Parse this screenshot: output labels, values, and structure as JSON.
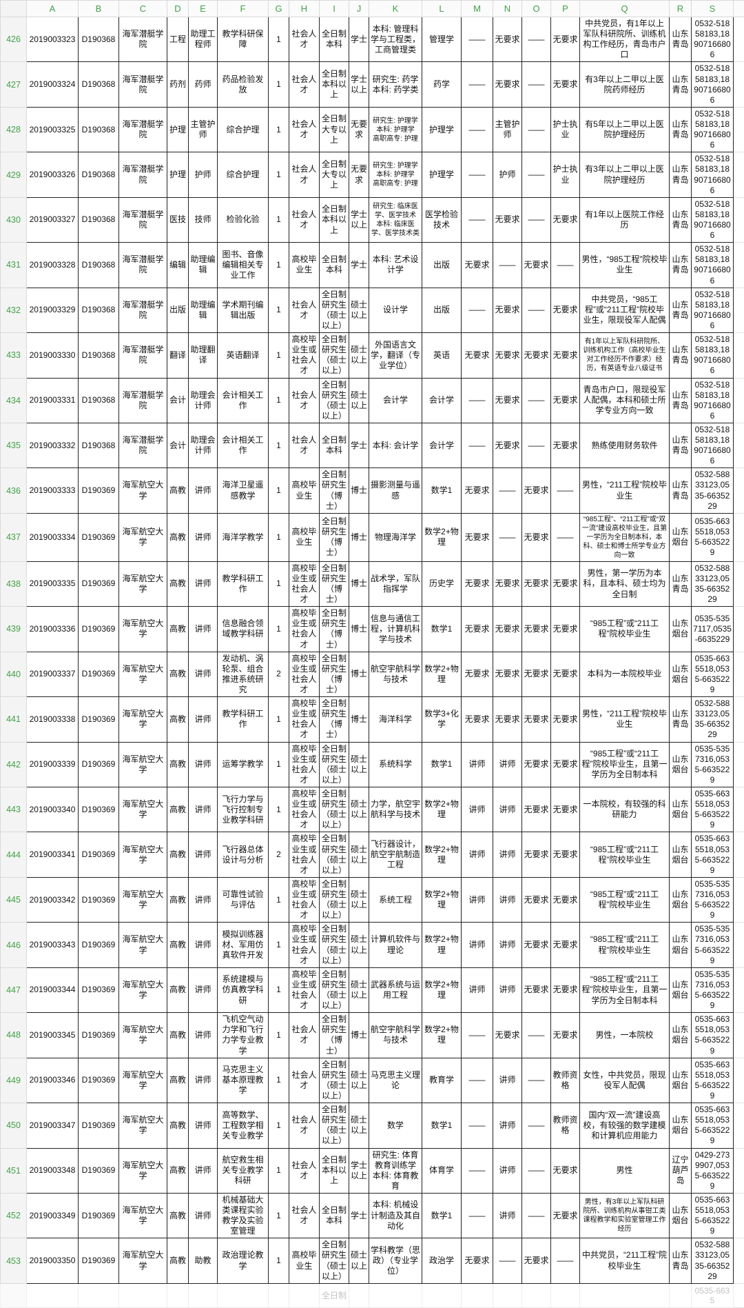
{
  "ui_colors": {
    "row_index_green": "#43a047",
    "grid_line": "#222222",
    "header_border": "#d9d9d9"
  },
  "ghost": {
    "cells": {
      "I": "全日制",
      "S": "0535-6635"
    }
  },
  "table": {
    "column_keys": [
      "A",
      "B",
      "C",
      "D",
      "E",
      "F",
      "G",
      "H",
      "I",
      "J",
      "K",
      "L",
      "M",
      "N",
      "O",
      "P",
      "Q",
      "R",
      "S"
    ],
    "rows": [
      {
        "num": "426",
        "cells": {
          "A": "2019003323",
          "B": "D190368",
          "C": "海军潜艇学院",
          "D": "工程",
          "E": "助理工程师",
          "F": "教学科研保障",
          "G": "1",
          "H": "社会人才",
          "I": "全日制本科",
          "J": "学士",
          "K": "本科: 管理科学与工程类，工商管理类",
          "L": "管理学",
          "M": "——",
          "N": "无要求",
          "O": "——",
          "P": "无要求",
          "Q": "中共党员，有1年以上军队科研院所、训练机构工作经历，青岛市户口",
          "R": "山东青岛",
          "S": "0532-51858183,18907166806"
        },
        "small": []
      },
      {
        "num": "427",
        "cells": {
          "A": "2019003324",
          "B": "D190368",
          "C": "海军潜艇学院",
          "D": "药剂",
          "E": "药师",
          "F": "药品检验发放",
          "G": "1",
          "H": "社会人才",
          "I": "全日制本科以上",
          "J": "学士以上",
          "K": "研究生: 药学\n本科: 药学类",
          "L": "药学",
          "M": "——",
          "N": "无要求",
          "O": "——",
          "P": "无要求",
          "Q": "有3年以上二甲以上医院药师经历",
          "R": "山东青岛",
          "S": "0532-51858183,18907166806"
        },
        "small": []
      },
      {
        "num": "428",
        "cells": {
          "A": "2019003325",
          "B": "D190368",
          "C": "海军潜艇学院",
          "D": "护理",
          "E": "主管护师",
          "F": "综合护理",
          "G": "1",
          "H": "社会人才",
          "I": "全日制大专以上",
          "J": "无要求",
          "K": "研究生: 护理学\n本科: 护理学\n高职高专: 护理",
          "L": "护理学",
          "M": "——",
          "N": "主管护师",
          "O": "——",
          "P": "护士执业",
          "Q": "有5年以上二甲以上医院护理经历",
          "R": "山东青岛",
          "S": "0532-51858183,18907166806"
        },
        "small": [
          "K"
        ]
      },
      {
        "num": "429",
        "cells": {
          "A": "2019003326",
          "B": "D190368",
          "C": "海军潜艇学院",
          "D": "护理",
          "E": "护师",
          "F": "综合护理",
          "G": "1",
          "H": "社会人才",
          "I": "全日制大专以上",
          "J": "无要求",
          "K": "研究生: 护理学\n本科: 护理学\n高职高专: 护理",
          "L": "护理学",
          "M": "——",
          "N": "护师",
          "O": "——",
          "P": "护士执业",
          "Q": "有3年以上二甲以上医院护理经历",
          "R": "山东青岛",
          "S": "0532-51858183,18907166806"
        },
        "small": [
          "K"
        ]
      },
      {
        "num": "430",
        "cells": {
          "A": "2019003327",
          "B": "D190368",
          "C": "海军潜艇学院",
          "D": "医技",
          "E": "技师",
          "F": "检验化验",
          "G": "1",
          "H": "社会人才",
          "I": "全日制本科以上",
          "J": "学士以上",
          "K": "研究生: 临床医学、医学技术\n本科: 临床医学、医学技术类",
          "L": "医学检验技术",
          "M": "——",
          "N": "无要求",
          "O": "——",
          "P": "无要求",
          "Q": "有1年以上医院工作经历",
          "R": "山东青岛",
          "S": "0532-51858183,18907166806"
        },
        "small": [
          "K"
        ]
      },
      {
        "num": "431",
        "cells": {
          "A": "2019003328",
          "B": "D190368",
          "C": "海军潜艇学院",
          "D": "编辑",
          "E": "助理编辑",
          "F": "图书、音像编辑相关专业工作",
          "G": "1",
          "H": "高校毕业生",
          "I": "全日制本科",
          "J": "学士",
          "K": "本科: 艺术设计学",
          "L": "出版",
          "M": "无要求",
          "N": "——",
          "O": "无要求",
          "P": "——",
          "Q": "男性，“985工程”院校毕业生",
          "R": "山东青岛",
          "S": "0532-51858183,18907166806"
        },
        "small": []
      },
      {
        "num": "432",
        "cells": {
          "A": "2019003329",
          "B": "D190368",
          "C": "海军潜艇学院",
          "D": "出版",
          "E": "助理编辑",
          "F": "学术期刊编辑出版",
          "G": "1",
          "H": "社会人才",
          "I": "全日制研究生（硕士以上）",
          "J": "硕士以上",
          "K": "设计学",
          "L": "出版",
          "M": "——",
          "N": "无要求",
          "O": "——",
          "P": "无要求",
          "Q": "中共党员，“985工程”或“211工程”院校毕业生，限现役军人配偶",
          "R": "山东青岛",
          "S": "0532-51858183,18907166806"
        },
        "small": []
      },
      {
        "num": "433",
        "cells": {
          "A": "2019003330",
          "B": "D190368",
          "C": "海军潜艇学院",
          "D": "翻译",
          "E": "助理翻译",
          "F": "英语翻译",
          "G": "1",
          "H": "高校毕业生或社会人才",
          "I": "全日制研究生（硕士以上）",
          "J": "硕士以上",
          "K": "外国语言文学，翻译（专业学位）",
          "L": "英语",
          "M": "无要求",
          "N": "无要求",
          "O": "无要求",
          "P": "无要求",
          "Q": "有1年以上军队科研院所、训练机构工作（高校毕业生对工作经历不作要求）经历，有英语专业八级证书",
          "R": "山东青岛",
          "S": "0532-51858183,18907166806"
        },
        "small": [
          "Q"
        ]
      },
      {
        "num": "434",
        "cells": {
          "A": "2019003331",
          "B": "D190368",
          "C": "海军潜艇学院",
          "D": "会计",
          "E": "助理会计师",
          "F": "会计相关工作",
          "G": "1",
          "H": "社会人才",
          "I": "全日制研究生（硕士以上）",
          "J": "硕士以上",
          "K": "会计学",
          "L": "会计学",
          "M": "——",
          "N": "无要求",
          "O": "——",
          "P": "无要求",
          "Q": "青岛市户口，限现役军人配偶，本科和硕士所学专业方向一致",
          "R": "山东青岛",
          "S": "0532-51858183,18907166806"
        },
        "small": []
      },
      {
        "num": "435",
        "cells": {
          "A": "2019003332",
          "B": "D190368",
          "C": "海军潜艇学院",
          "D": "会计",
          "E": "助理会计师",
          "F": "会计相关工作",
          "G": "1",
          "H": "社会人才",
          "I": "全日制本科",
          "J": "学士",
          "K": "本科: 会计学",
          "L": "会计学",
          "M": "——",
          "N": "无要求",
          "O": "——",
          "P": "无要求",
          "Q": "熟练使用财务软件",
          "R": "山东青岛",
          "S": "0532-51858183,18907166806"
        },
        "small": []
      },
      {
        "num": "436",
        "cells": {
          "A": "2019003333",
          "B": "D190369",
          "C": "海军航空大学",
          "D": "高教",
          "E": "讲师",
          "F": "海洋卫星遥感教学",
          "G": "1",
          "H": "高校毕业生",
          "I": "全日制研究生（博士）",
          "J": "博士",
          "K": "摄影测量与遥感",
          "L": "数学1",
          "M": "无要求",
          "N": "——",
          "O": "无要求",
          "P": "——",
          "Q": "男性，“211工程”院校毕业生",
          "R": "山东青岛",
          "S": "0532-58833123,0535-6635229"
        },
        "small": []
      },
      {
        "num": "437",
        "cells": {
          "A": "2019003334",
          "B": "D190369",
          "C": "海军航空大学",
          "D": "高教",
          "E": "讲师",
          "F": "海洋学教学",
          "G": "1",
          "H": "高校毕业生",
          "I": "全日制研究生（博士）",
          "J": "博士",
          "K": "物理海洋学",
          "L": "数学2+物理",
          "M": "无要求",
          "N": "——",
          "O": "无要求",
          "P": "——",
          "Q": "“985工程”、“211工程”或“双一流”建设高校毕业生，且第一学历为全日制本科，本科、硕士和博士所学专业方向一致",
          "R": "山东烟台",
          "S": "0535-6635518,0535-6635229"
        },
        "small": [
          "Q"
        ]
      },
      {
        "num": "438",
        "cells": {
          "A": "2019003335",
          "B": "D190369",
          "C": "海军航空大学",
          "D": "高教",
          "E": "讲师",
          "F": "教学科研工作",
          "G": "1",
          "H": "高校毕业生或社会人才",
          "I": "全日制研究生（博士）",
          "J": "博士",
          "K": "战术学，军队指挥学",
          "L": "历史学",
          "M": "无要求",
          "N": "无要求",
          "O": "无要求",
          "P": "无要求",
          "Q": "男性，第一学历为本科，且本科、硕士均为全日制",
          "R": "山东青岛",
          "S": "0532-58833123,0535-6635229"
        },
        "small": []
      },
      {
        "num": "439",
        "cells": {
          "A": "2019003336",
          "B": "D190369",
          "C": "海军航空大学",
          "D": "高教",
          "E": "讲师",
          "F": "信息融合领域教学科研",
          "G": "1",
          "H": "高校毕业生或社会人才",
          "I": "全日制研究生（博士）",
          "J": "博士",
          "K": "信息与通信工程，计算机科学与技术",
          "L": "数学1",
          "M": "无要求",
          "N": "无要求",
          "O": "无要求",
          "P": "无要求",
          "Q": "“985工程”或“211工程”院校毕业生",
          "R": "山东烟台",
          "S": "0535-5357117,0535-6635229"
        },
        "small": []
      },
      {
        "num": "440",
        "cells": {
          "A": "2019003337",
          "B": "D190369",
          "C": "海军航空大学",
          "D": "高教",
          "E": "讲师",
          "F": "发动机、涡轮泵、组合推进系统研究",
          "G": "2",
          "H": "高校毕业生或社会人才",
          "I": "全日制研究生（博士）",
          "J": "博士",
          "K": "航空宇航科学与技术",
          "L": "数学2+物理",
          "M": "无要求",
          "N": "无要求",
          "O": "无要求",
          "P": "无要求",
          "Q": "本科为一本院校毕业",
          "R": "山东烟台",
          "S": "0535-6635518,0535-6635229"
        },
        "small": []
      },
      {
        "num": "441",
        "cells": {
          "A": "2019003338",
          "B": "D190369",
          "C": "海军航空大学",
          "D": "高教",
          "E": "讲师",
          "F": "教学科研工作",
          "G": "1",
          "H": "高校毕业生或社会人才",
          "I": "全日制研究生（博士）",
          "J": "博士",
          "K": "海洋科学",
          "L": "数学3+化学",
          "M": "无要求",
          "N": "无要求",
          "O": "无要求",
          "P": "无要求",
          "Q": "男性，“211工程”院校毕业生",
          "R": "山东青岛",
          "S": "0532-58833123,0535-6635229"
        },
        "small": []
      },
      {
        "num": "442",
        "cells": {
          "A": "2019003339",
          "B": "D190369",
          "C": "海军航空大学",
          "D": "高教",
          "E": "讲师",
          "F": "运筹学教学",
          "G": "1",
          "H": "高校毕业生或社会人才",
          "I": "全日制研究生（硕士以上）",
          "J": "硕士以上",
          "K": "系统科学",
          "L": "数学1",
          "M": "讲师",
          "N": "讲师",
          "O": "无要求",
          "P": "无要求",
          "Q": "“985工程”或“211工程”院校毕业生，且第一学历为全日制本科",
          "R": "山东烟台",
          "S": "0535-5357316,0535-6635229"
        },
        "small": []
      },
      {
        "num": "443",
        "cells": {
          "A": "2019003340",
          "B": "D190369",
          "C": "海军航空大学",
          "D": "高教",
          "E": "讲师",
          "F": "飞行力学与飞行控制专业教学科研",
          "G": "1",
          "H": "高校毕业生或社会人才",
          "I": "全日制研究生（硕士以上）",
          "J": "硕士以上",
          "K": "力学，航空宇航科学与技术",
          "L": "数学2+物理",
          "M": "讲师",
          "N": "讲师",
          "O": "无要求",
          "P": "无要求",
          "Q": "一本院校，有较强的科研能力",
          "R": "山东烟台",
          "S": "0535-6635518,0535-6635229"
        },
        "small": []
      },
      {
        "num": "444",
        "cells": {
          "A": "2019003341",
          "B": "D190369",
          "C": "海军航空大学",
          "D": "高教",
          "E": "讲师",
          "F": "飞行器总体设计与分析",
          "G": "2",
          "H": "高校毕业生或社会人才",
          "I": "全日制研究生（硕士以上）",
          "J": "硕士以上",
          "K": "飞行器设计，航空宇航制造工程",
          "L": "数学2+物理",
          "M": "讲师",
          "N": "讲师",
          "O": "无要求",
          "P": "无要求",
          "Q": "“985工程”或“211工程”院校毕业生",
          "R": "山东烟台",
          "S": "0535-6635518,0535-6635229"
        },
        "small": []
      },
      {
        "num": "445",
        "cells": {
          "A": "2019003342",
          "B": "D190369",
          "C": "海军航空大学",
          "D": "高教",
          "E": "讲师",
          "F": "可靠性试验与评估",
          "G": "1",
          "H": "高校毕业生或社会人才",
          "I": "全日制研究生（硕士以上）",
          "J": "硕士以上",
          "K": "系统工程",
          "L": "数学2+物理",
          "M": "讲师",
          "N": "讲师",
          "O": "无要求",
          "P": "无要求",
          "Q": "“985工程”或“211工程”院校毕业生",
          "R": "山东烟台",
          "S": "0535-5357316,0535-6635229"
        },
        "small": []
      },
      {
        "num": "446",
        "cells": {
          "A": "2019003343",
          "B": "D190369",
          "C": "海军航空大学",
          "D": "高教",
          "E": "讲师",
          "F": "模拟训练器材、军用仿真软件开发",
          "G": "1",
          "H": "高校毕业生或社会人才",
          "I": "全日制研究生（硕士以上）",
          "J": "硕士以上",
          "K": "计算机软件与理论",
          "L": "数学2+物理",
          "M": "讲师",
          "N": "讲师",
          "O": "无要求",
          "P": "无要求",
          "Q": "“985工程”或“211工程”院校毕业生",
          "R": "山东烟台",
          "S": "0535-5357316,0535-6635229"
        },
        "small": []
      },
      {
        "num": "447",
        "cells": {
          "A": "2019003344",
          "B": "D190369",
          "C": "海军航空大学",
          "D": "高教",
          "E": "讲师",
          "F": "系统建模与仿真教学科研",
          "G": "1",
          "H": "高校毕业生或社会人才",
          "I": "全日制研究生（硕士以上）",
          "J": "硕士以上",
          "K": "武器系统与运用工程",
          "L": "数学2+物理",
          "M": "讲师",
          "N": "讲师",
          "O": "无要求",
          "P": "无要求",
          "Q": "“985工程”或“211工程”院校毕业生，且第一学历为全日制本科",
          "R": "山东烟台",
          "S": "0535-5357316,0535-6635229"
        },
        "small": []
      },
      {
        "num": "448",
        "cells": {
          "A": "2019003345",
          "B": "D190369",
          "C": "海军航空大学",
          "D": "高教",
          "E": "讲师",
          "F": "飞机空气动力学和飞行力学专业教学",
          "G": "1",
          "H": "社会人才",
          "I": "全日制研究生（博士）",
          "J": "博士",
          "K": "航空宇航科学与技术",
          "L": "数学2+物理",
          "M": "——",
          "N": "无要求",
          "O": "——",
          "P": "无要求",
          "Q": "男性，一本院校",
          "R": "山东烟台",
          "S": "0535-6635518,0535-6635229"
        },
        "small": []
      },
      {
        "num": "449",
        "cells": {
          "A": "2019003346",
          "B": "D190369",
          "C": "海军航空大学",
          "D": "高教",
          "E": "讲师",
          "F": "马克思主义基本原理教学",
          "G": "1",
          "H": "社会人才",
          "I": "全日制研究生（硕士以上）",
          "J": "硕士以上",
          "K": "马克思主义理论",
          "L": "教育学",
          "M": "——",
          "N": "讲师",
          "O": "——",
          "P": "教师资格",
          "Q": "女性，中共党员，限现役军人配偶",
          "R": "山东烟台",
          "S": "0535-6635518,0535-6635229"
        },
        "small": []
      },
      {
        "num": "450",
        "cells": {
          "A": "2019003347",
          "B": "D190369",
          "C": "海军航空大学",
          "D": "高教",
          "E": "讲师",
          "F": "高等数学、工程数学相关专业教学",
          "G": "1",
          "H": "社会人才",
          "I": "全日制研究生（硕士以上）",
          "J": "硕士以上",
          "K": "数学",
          "L": "数学1",
          "M": "——",
          "N": "讲师",
          "O": "——",
          "P": "教师资格",
          "Q": "国内“双一流”建设高校，有较强的数学建模和计算机应用能力",
          "R": "山东烟台",
          "S": "0535-6635518,0535-6635229"
        },
        "small": []
      },
      {
        "num": "451",
        "cells": {
          "A": "2019003348",
          "B": "D190369",
          "C": "海军航空大学",
          "D": "高教",
          "E": "讲师",
          "F": "航空救生相关专业教学科研",
          "G": "1",
          "H": "社会人才",
          "I": "全日制本科以上",
          "J": "学士以上",
          "K": "研究生: 体育教育训练学\n本科: 体育教育",
          "L": "体育学",
          "M": "——",
          "N": "讲师",
          "O": "——",
          "P": "无要求",
          "Q": "男性",
          "R": "辽宁葫芦岛",
          "S": "0429-2739907,0535-6635229"
        },
        "small": []
      },
      {
        "num": "452",
        "cells": {
          "A": "2019003349",
          "B": "D190369",
          "C": "海军航空大学",
          "D": "高教",
          "E": "讲师",
          "F": "机械基础大类课程实验教学及实验室管理",
          "G": "1",
          "H": "社会人才",
          "I": "全日制本科",
          "J": "学士",
          "K": "本科: 机械设计制造及其自动化",
          "L": "数学1",
          "M": "——",
          "N": "讲师",
          "O": "——",
          "P": "无要求",
          "Q": "男性，有3年以上军队科研院所、训练机构从事钳工类课程教学和实验室管理工作经历",
          "R": "山东烟台",
          "S": "0535-6635518,0535-6635229"
        },
        "small": [
          "Q"
        ]
      },
      {
        "num": "453",
        "cells": {
          "A": "2019003350",
          "B": "D190369",
          "C": "海军航空大学",
          "D": "高教",
          "E": "助教",
          "F": "政治理论教学",
          "G": "1",
          "H": "高校毕业生",
          "I": "全日制研究生（硕士以上）",
          "J": "硕士以上",
          "K": "学科教学（思政）（专业学位）",
          "L": "政治学",
          "M": "无要求",
          "N": "——",
          "O": "无要求",
          "P": "——",
          "Q": "中共党员，“211工程”院校毕业生",
          "R": "山东青岛",
          "S": "0532-58833123,0535-6635229"
        },
        "small": []
      }
    ]
  }
}
